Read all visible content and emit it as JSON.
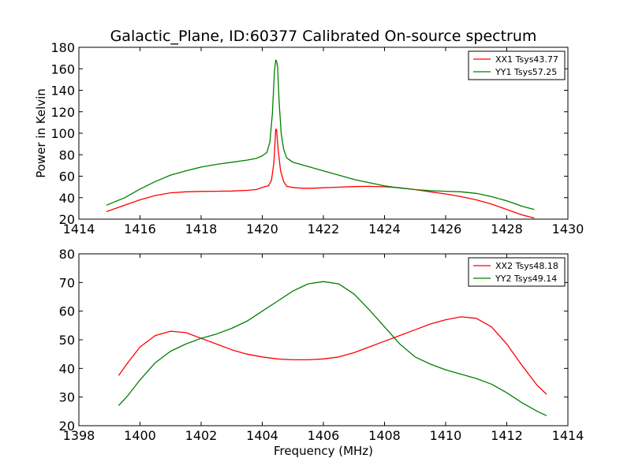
{
  "chart_data": [
    {
      "type": "line",
      "title": "Galactic_Plane, ID:60377 Calibrated On-source spectrum",
      "xlabel": "",
      "ylabel": "Power in Kelvin",
      "xlim": [
        1414,
        1430
      ],
      "ylim": [
        20,
        180
      ],
      "xticks": [
        "1414",
        "1416",
        "1418",
        "1420",
        "1422",
        "1424",
        "1426",
        "1428",
        "1430"
      ],
      "yticks": [
        "20",
        "40",
        "60",
        "80",
        "100",
        "120",
        "140",
        "160",
        "180"
      ],
      "grid": false,
      "legend_position": "top-right",
      "series": [
        {
          "name": "XX1 Tsys43.77",
          "color": "#ff0000",
          "x": [
            1414.9,
            1415.5,
            1416.0,
            1416.5,
            1417.0,
            1417.5,
            1418.0,
            1418.5,
            1419.0,
            1419.5,
            1419.8,
            1420.0,
            1420.2,
            1420.3,
            1420.38,
            1420.44,
            1420.47,
            1420.52,
            1420.6,
            1420.7,
            1420.8,
            1421.0,
            1421.3,
            1421.6,
            1422.0,
            1422.5,
            1423.0,
            1423.5,
            1424.0,
            1424.5,
            1425.0,
            1425.5,
            1426.0,
            1426.5,
            1427.0,
            1427.5,
            1428.0,
            1428.5,
            1428.9
          ],
          "y": [
            27,
            33,
            38,
            42,
            44.5,
            45.5,
            45.8,
            46,
            46.2,
            46.8,
            47.5,
            49.5,
            51,
            56,
            72,
            104,
            103,
            85,
            65,
            55,
            50.5,
            49.5,
            48.8,
            48.8,
            49.2,
            49.8,
            50.3,
            50.5,
            50.2,
            49.2,
            47.5,
            45.5,
            43.5,
            41,
            38,
            34,
            29,
            24,
            21
          ]
        },
        {
          "name": "YY1 Tsys57.25",
          "color": "#008000",
          "x": [
            1414.9,
            1415.5,
            1416.0,
            1416.5,
            1417.0,
            1417.5,
            1418.0,
            1418.5,
            1419.0,
            1419.5,
            1419.8,
            1420.0,
            1420.15,
            1420.25,
            1420.33,
            1420.4,
            1420.44,
            1420.47,
            1420.5,
            1420.55,
            1420.62,
            1420.7,
            1420.8,
            1421.0,
            1421.5,
            1422.0,
            1422.5,
            1423.0,
            1423.5,
            1424.0,
            1424.5,
            1425.0,
            1425.5,
            1426.0,
            1426.5,
            1427.0,
            1427.5,
            1428.0,
            1428.5,
            1428.9
          ],
          "y": [
            33,
            40,
            48,
            55,
            61,
            65,
            68.5,
            71,
            73,
            75,
            76.5,
            79,
            82,
            92,
            118,
            158,
            168,
            167,
            162,
            130,
            100,
            85,
            77,
            73,
            69,
            65,
            61,
            57,
            54,
            51,
            49,
            47.5,
            46.5,
            46,
            45.5,
            44,
            41,
            37,
            32,
            29
          ]
        }
      ]
    },
    {
      "type": "line",
      "title": "",
      "xlabel": "Frequency (MHz)",
      "ylabel": "",
      "xlim": [
        1398,
        1414
      ],
      "ylim": [
        20,
        80
      ],
      "xticks": [
        "1398",
        "1400",
        "1402",
        "1404",
        "1406",
        "1408",
        "1410",
        "1412",
        "1414"
      ],
      "yticks": [
        "20",
        "30",
        "40",
        "50",
        "60",
        "70",
        "80"
      ],
      "grid": false,
      "legend_position": "top-right",
      "series": [
        {
          "name": "XX2 Tsys48.18",
          "color": "#ff0000",
          "x": [
            1399.3,
            1399.6,
            1400.0,
            1400.5,
            1401.0,
            1401.5,
            1402.0,
            1402.5,
            1403.0,
            1403.5,
            1404.0,
            1404.5,
            1405.0,
            1405.5,
            1406.0,
            1406.5,
            1407.0,
            1407.5,
            1408.0,
            1408.5,
            1409.0,
            1409.5,
            1410.0,
            1410.5,
            1411.0,
            1411.5,
            1412.0,
            1412.5,
            1413.0,
            1413.3
          ],
          "y": [
            37.5,
            42,
            47.5,
            51.5,
            53,
            52.5,
            50.5,
            48.5,
            46.5,
            45,
            44,
            43.3,
            43,
            43,
            43.3,
            44,
            45.5,
            47.5,
            49.5,
            51.5,
            53.5,
            55.5,
            57,
            58,
            57.5,
            54.5,
            48.5,
            41,
            34,
            31
          ]
        },
        {
          "name": "YY2 Tsys49.14",
          "color": "#008000",
          "x": [
            1399.3,
            1399.6,
            1400.0,
            1400.5,
            1401.0,
            1401.5,
            1402.0,
            1402.5,
            1403.0,
            1403.5,
            1404.0,
            1404.5,
            1405.0,
            1405.5,
            1406.0,
            1406.5,
            1407.0,
            1407.5,
            1408.0,
            1408.5,
            1409.0,
            1409.5,
            1410.0,
            1410.5,
            1411.0,
            1411.5,
            1412.0,
            1412.5,
            1413.0,
            1413.3
          ],
          "y": [
            27,
            30.5,
            36,
            42,
            46,
            48.5,
            50.5,
            52,
            54,
            56.5,
            60,
            63.5,
            67,
            69.5,
            70.3,
            69.5,
            66,
            60.5,
            54.5,
            48.5,
            44,
            41.5,
            39.5,
            38,
            36.5,
            34.5,
            31.5,
            28,
            25,
            23.5
          ]
        }
      ]
    }
  ]
}
